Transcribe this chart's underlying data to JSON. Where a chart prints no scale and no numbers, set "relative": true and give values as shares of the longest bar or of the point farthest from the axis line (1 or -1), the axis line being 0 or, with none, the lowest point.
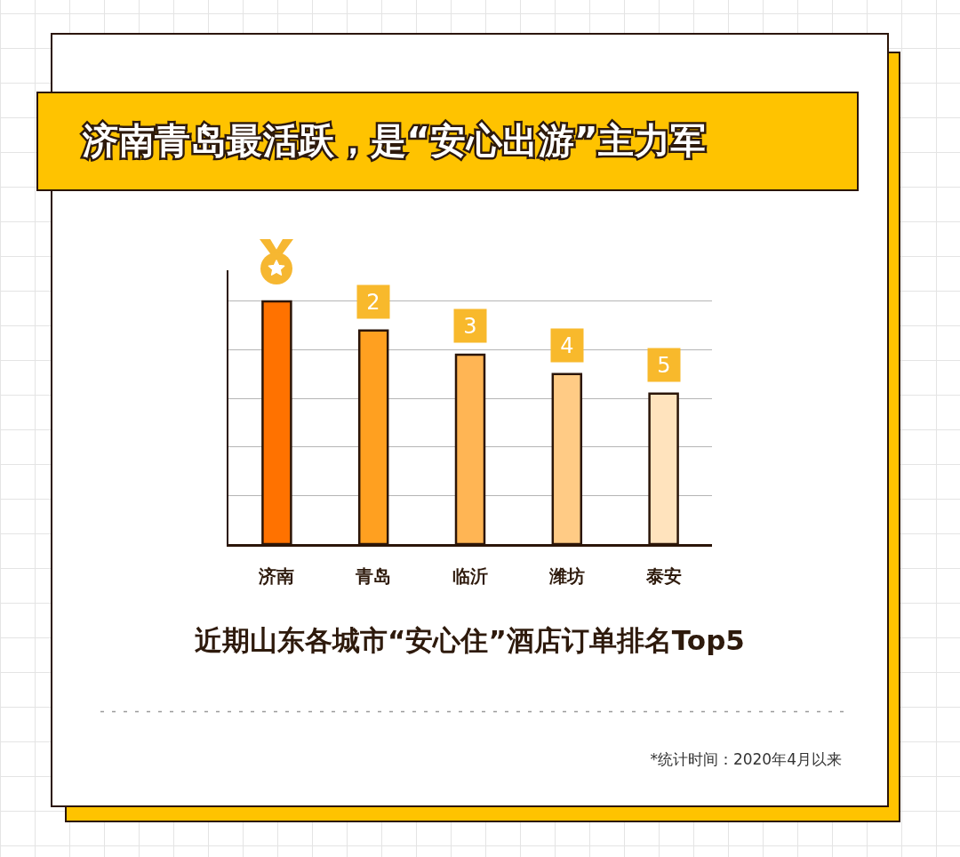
{
  "chart_data": {
    "type": "bar",
    "title": "济南青岛最活跃，是“安心出游”主力军",
    "subtitle": "近期山东各城市“安心住”酒店订单排名Top5",
    "categories": [
      "济南",
      "青岛",
      "临沂",
      "潍坊",
      "泰安"
    ],
    "values": [
      1,
      0.88,
      0.78,
      0.7,
      0.62
    ],
    "colors": [
      "#ff7200",
      "#ffa020",
      "#ffb554",
      "#ffcb85",
      "#ffe3bd"
    ],
    "relative": true,
    "grid": "y",
    "annotations": [
      {
        "text": "2",
        "x": "青岛",
        "y": 0.88
      },
      {
        "text": "3",
        "x": "临沂",
        "y": 0.78
      },
      {
        "text": "4",
        "x": "潍坊",
        "y": 0.7
      },
      {
        "text": "5",
        "x": "泰安",
        "y": 0.62
      },
      "*统计时间：2020年4月以来"
    ]
  }
}
